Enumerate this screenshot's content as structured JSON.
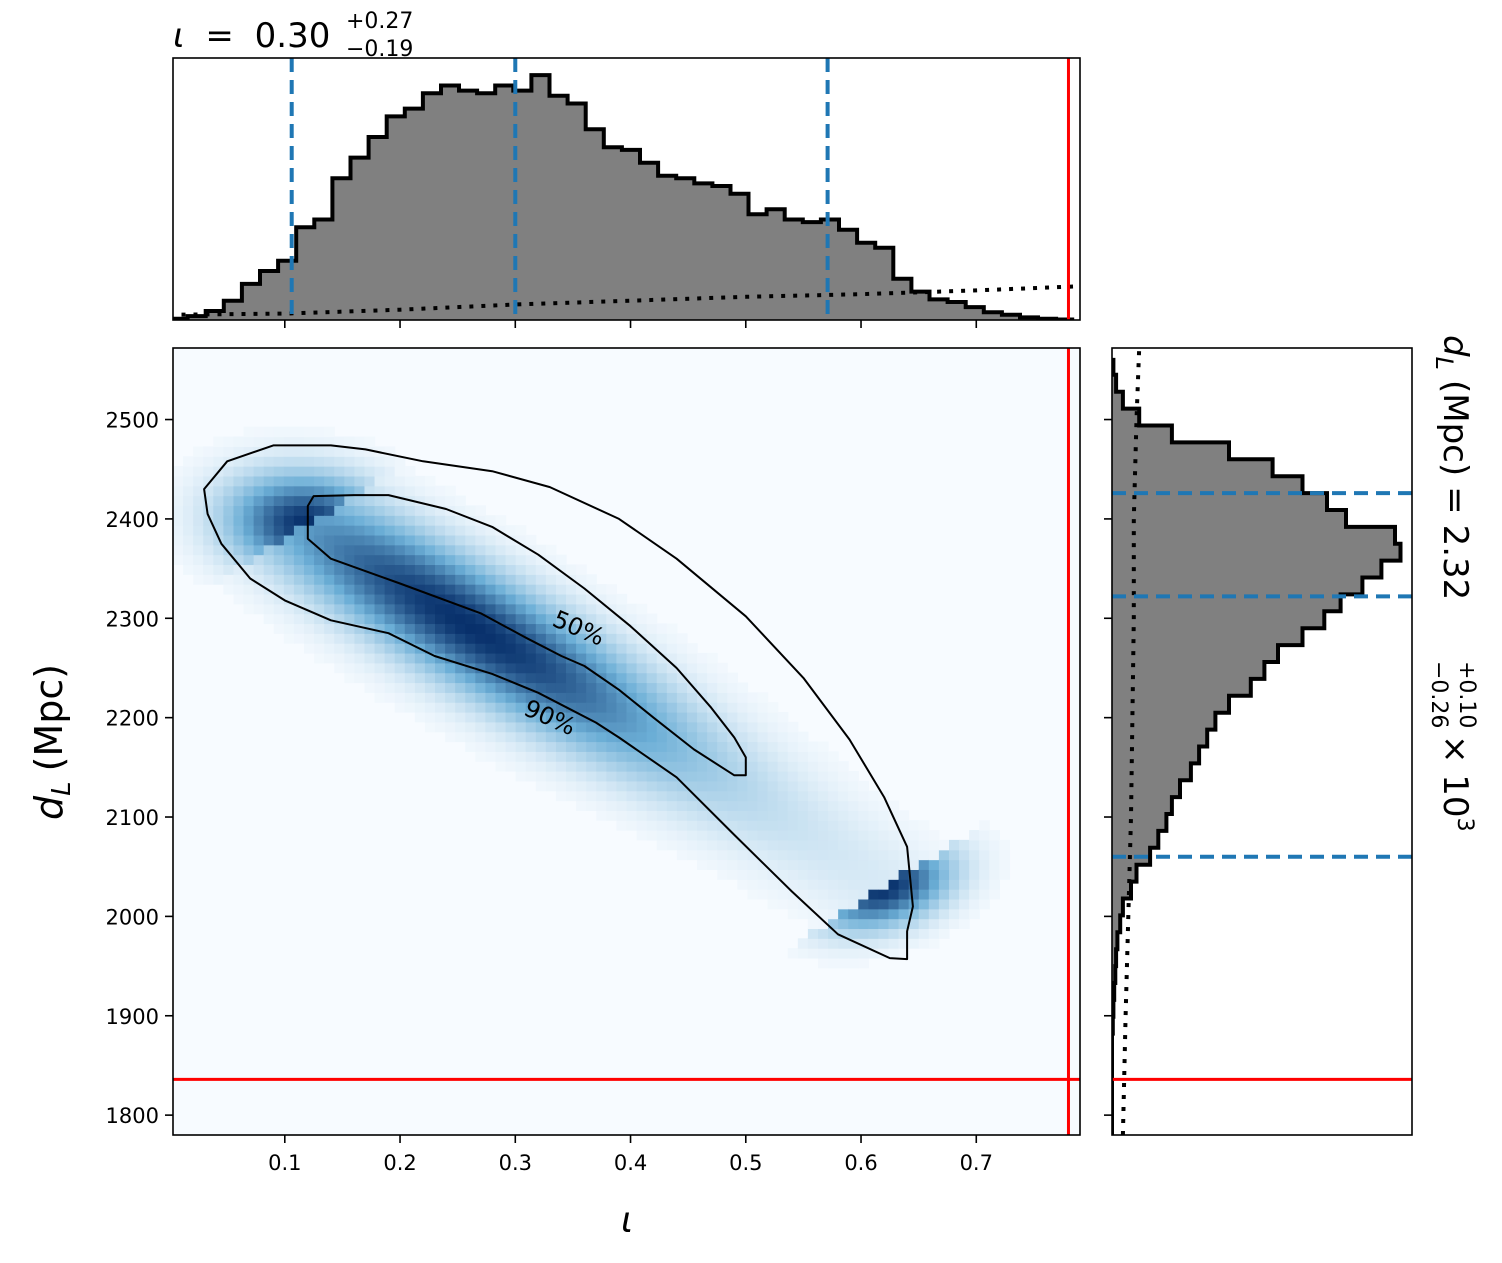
{
  "chart_data": {
    "type": "corner",
    "top_title": {
      "symbol": "ι",
      "equals": "=",
      "value": "0.30",
      "plus": "+0.27",
      "minus": "−0.19"
    },
    "right_title": {
      "prefix": "d",
      "sub": "L",
      "unit": "(Mpc)",
      "equals": "=",
      "value": "2.32",
      "plus": "+0.10",
      "minus": "−0.26",
      "times": "× 10",
      "exp": "3"
    },
    "xlabel": "ι",
    "ylabel": {
      "symbol": "d",
      "sub": "L",
      "unit": "(Mpc)"
    },
    "xlim": [
      0.003,
      0.79
    ],
    "ylim": [
      1780,
      2572
    ],
    "xticks": [
      {
        "value": 0.1,
        "label": "0.1"
      },
      {
        "value": 0.2,
        "label": "0.2"
      },
      {
        "value": 0.3,
        "label": "0.3"
      },
      {
        "value": 0.4,
        "label": "0.4"
      },
      {
        "value": 0.5,
        "label": "0.5"
      },
      {
        "value": 0.6,
        "label": "0.6"
      },
      {
        "value": 0.7,
        "label": "0.7"
      }
    ],
    "yticks": [
      {
        "value": 1800,
        "label": "1800"
      },
      {
        "value": 1900,
        "label": "1900"
      },
      {
        "value": 2000,
        "label": "2000"
      },
      {
        "value": 2100,
        "label": "2100"
      },
      {
        "value": 2200,
        "label": "2200"
      },
      {
        "value": 2300,
        "label": "2300"
      },
      {
        "value": 2400,
        "label": "2400"
      },
      {
        "value": 2500,
        "label": "2500"
      }
    ],
    "contours": [
      {
        "label": "90%",
        "label_x": 0.33,
        "label_y": 2200,
        "label_rotation": 24,
        "points": [
          [
            0.03,
            2430
          ],
          [
            0.05,
            2458
          ],
          [
            0.09,
            2474
          ],
          [
            0.14,
            2474
          ],
          [
            0.17,
            2470
          ],
          [
            0.22,
            2458
          ],
          [
            0.28,
            2448
          ],
          [
            0.33,
            2432
          ],
          [
            0.39,
            2400
          ],
          [
            0.44,
            2360
          ],
          [
            0.5,
            2302
          ],
          [
            0.55,
            2240
          ],
          [
            0.59,
            2178
          ],
          [
            0.62,
            2120
          ],
          [
            0.64,
            2070
          ],
          [
            0.645,
            2010
          ],
          [
            0.64,
            1985
          ],
          [
            0.64,
            1957
          ],
          [
            0.625,
            1958
          ],
          [
            0.58,
            1982
          ],
          [
            0.54,
            2025
          ],
          [
            0.49,
            2082
          ],
          [
            0.44,
            2140
          ],
          [
            0.39,
            2180
          ],
          [
            0.37,
            2195
          ],
          [
            0.35,
            2207
          ],
          [
            0.32,
            2225
          ],
          [
            0.28,
            2244
          ],
          [
            0.23,
            2262
          ],
          [
            0.19,
            2285
          ],
          [
            0.14,
            2298
          ],
          [
            0.1,
            2318
          ],
          [
            0.07,
            2340
          ],
          [
            0.045,
            2375
          ],
          [
            0.033,
            2405
          ]
        ]
      },
      {
        "label": "50%",
        "label_x": 0.355,
        "label_y": 2290,
        "label_rotation": 23,
        "points": [
          [
            0.12,
            2413
          ],
          [
            0.125,
            2423
          ],
          [
            0.16,
            2424
          ],
          [
            0.19,
            2424
          ],
          [
            0.24,
            2410
          ],
          [
            0.28,
            2392
          ],
          [
            0.32,
            2364
          ],
          [
            0.36,
            2330
          ],
          [
            0.4,
            2292
          ],
          [
            0.44,
            2250
          ],
          [
            0.47,
            2210
          ],
          [
            0.49,
            2180
          ],
          [
            0.5,
            2160
          ],
          [
            0.5,
            2142
          ],
          [
            0.49,
            2142
          ],
          [
            0.455,
            2168
          ],
          [
            0.42,
            2200
          ],
          [
            0.39,
            2228
          ],
          [
            0.36,
            2252
          ],
          [
            0.34,
            2262
          ],
          [
            0.31,
            2280
          ],
          [
            0.27,
            2305
          ],
          [
            0.2,
            2335
          ],
          [
            0.14,
            2360
          ],
          [
            0.13,
            2370
          ],
          [
            0.12,
            2380
          ]
        ]
      }
    ],
    "truth": {
      "x": 0.78,
      "y": 1836
    },
    "iota_quantiles": [
      0.106,
      0.3,
      0.571
    ],
    "dl_quantiles": [
      2060,
      2322,
      2426
    ],
    "iota_hist": {
      "bins": [
        0.0,
        0.0157,
        0.0314,
        0.0471,
        0.0628,
        0.0785,
        0.0942,
        0.1099,
        0.1256,
        0.1413,
        0.157,
        0.1727,
        0.1884,
        0.2041,
        0.2198,
        0.2355,
        0.2512,
        0.2669,
        0.2826,
        0.2983,
        0.314,
        0.3297,
        0.3454,
        0.3611,
        0.3768,
        0.3925,
        0.4082,
        0.4239,
        0.4396,
        0.4553,
        0.471,
        0.4867,
        0.5024,
        0.5181,
        0.5338,
        0.5495,
        0.5652,
        0.5809,
        0.5966,
        0.6123,
        0.628,
        0.6437,
        0.6594,
        0.6751,
        0.6908,
        0.7065,
        0.7222,
        0.7379,
        0.7536,
        0.7693,
        0.785
      ],
      "counts": [
        0.5,
        1.5,
        3.5,
        7.5,
        14,
        19,
        23,
        36,
        39,
        55,
        63,
        71,
        79,
        82,
        88,
        91,
        89,
        88,
        91,
        89,
        95,
        87,
        84,
        74,
        67,
        66,
        61,
        56,
        55,
        53,
        52,
        49,
        41,
        43,
        39,
        38,
        39,
        35,
        30,
        28,
        16,
        11,
        8,
        7,
        5,
        3,
        2,
        1,
        0.5,
        0.2
      ],
      "prior_x": [
        0.0,
        0.1,
        0.2,
        0.3,
        0.4,
        0.5,
        0.6,
        0.7,
        0.785
      ],
      "prior_y": [
        2.0,
        2.5,
        4.0,
        6.0,
        7.5,
        9.0,
        10.0,
        11.5,
        13.0
      ]
    },
    "dl_hist": {
      "bins": [
        1780,
        1797,
        1814,
        1831,
        1848,
        1865,
        1882,
        1899,
        1916,
        1933,
        1950,
        1967,
        1984,
        2001,
        2018,
        2035,
        2052,
        2069,
        2086,
        2103,
        2120,
        2137,
        2154,
        2171,
        2188,
        2205,
        2222,
        2239,
        2256,
        2273,
        2290,
        2307,
        2324,
        2341,
        2358,
        2375,
        2392,
        2409,
        2426,
        2443,
        2460,
        2477,
        2494,
        2511,
        2528,
        2545,
        2562
      ],
      "counts": [
        0,
        0,
        0,
        0,
        0,
        0,
        0.3,
        0.5,
        0.8,
        1.2,
        1.5,
        2,
        3,
        4,
        7,
        9,
        14,
        17,
        20,
        22,
        25,
        29,
        32,
        35,
        38,
        43,
        51,
        56,
        61,
        70,
        78,
        84,
        92,
        99,
        106,
        104,
        86,
        79,
        70,
        59,
        43,
        22,
        10,
        4,
        1.5,
        0.5
      ],
      "prior_x": [
        1780,
        1900,
        2000,
        2100,
        2200,
        2300,
        2400,
        2500,
        2572
      ],
      "prior_y": [
        4.0,
        5.0,
        6.0,
        7.0,
        7.5,
        8.0,
        8.0,
        9.0,
        10.0
      ]
    },
    "density_peak": {
      "x": 0.24,
      "y": 2365
    }
  },
  "colors": {
    "hist_fill": "#808080",
    "quantile_line": "#1f77b4",
    "truth_line": "#ff0000",
    "density_low": "#f7fbff",
    "density_high": "#08306b"
  }
}
